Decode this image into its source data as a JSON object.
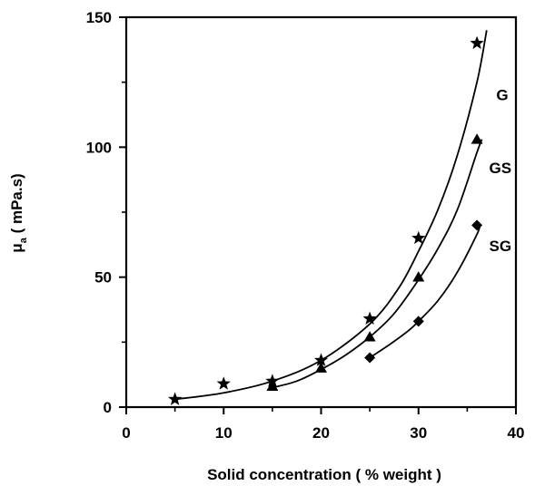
{
  "chart_data": {
    "type": "scatter",
    "title": "",
    "xlabel": "Solid concentration ( % weight )",
    "ylabel": "μa ( mPa.s)",
    "ylabel_main": "μ",
    "ylabel_sub": "a",
    "ylabel_rest": " ( mPa.s)",
    "xlim": [
      0,
      40
    ],
    "ylim": [
      0,
      150
    ],
    "xticks": [
      0,
      10,
      20,
      30,
      40
    ],
    "yticks": [
      0,
      50,
      100,
      150
    ],
    "grid": false,
    "legend": "none",
    "series": [
      {
        "name": "G",
        "marker": "star",
        "x": [
          5,
          10,
          15,
          20,
          25,
          30,
          36
        ],
        "y": [
          3,
          9,
          10,
          18,
          34,
          65,
          140
        ],
        "fit": [
          [
            5,
            3
          ],
          [
            10,
            5.5
          ],
          [
            15,
            10
          ],
          [
            20,
            18
          ],
          [
            25,
            32
          ],
          [
            28,
            46
          ],
          [
            30,
            60
          ],
          [
            32,
            76
          ],
          [
            34,
            97
          ],
          [
            36,
            125
          ],
          [
            37,
            145
          ]
        ]
      },
      {
        "name": "GS",
        "marker": "triangle",
        "x": [
          15,
          20,
          25,
          30,
          36
        ],
        "y": [
          8,
          15,
          27,
          50,
          103
        ],
        "fit": [
          [
            15,
            7.5
          ],
          [
            17.5,
            10
          ],
          [
            20,
            14.5
          ],
          [
            22.5,
            20
          ],
          [
            25,
            27
          ],
          [
            27.5,
            36
          ],
          [
            30,
            49
          ],
          [
            32,
            61
          ],
          [
            34,
            76
          ],
          [
            36,
            98
          ],
          [
            36.5,
            103
          ]
        ]
      },
      {
        "name": "SG",
        "marker": "diamond",
        "x": [
          25,
          30,
          36
        ],
        "y": [
          19,
          33,
          70
        ],
        "fit": [
          [
            25,
            19
          ],
          [
            27,
            24
          ],
          [
            29,
            29.5
          ],
          [
            30,
            33
          ],
          [
            32,
            41
          ],
          [
            34,
            52
          ],
          [
            36,
            66.5
          ],
          [
            36.3,
            70
          ]
        ]
      }
    ],
    "series_label_pos": [
      {
        "name": "G",
        "x": 38.6,
        "y": 118
      },
      {
        "name": "GS",
        "x": 38.4,
        "y": 90
      },
      {
        "name": "SG",
        "x": 38.4,
        "y": 60
      }
    ]
  }
}
